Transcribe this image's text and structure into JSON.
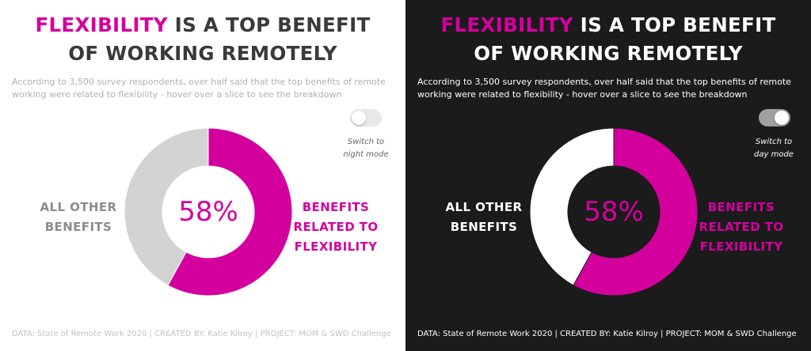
{
  "colors": {
    "accent": "#d4009e",
    "other_light": "#d3d3d3",
    "other_dark": "#ffffff",
    "dark_bg": "#1c1b1b"
  },
  "light": {
    "title_hl": "FLEXIBILITY",
    "title_rest": " IS A TOP BENEFIT",
    "title_line2": "OF WORKING REMOTELY",
    "subtitle": "According to 3,500 survey respondents, over half said that the top benefits of remote working were related to flexibility - hover over a slice to see the breakdown",
    "toggle_label": "Switch to night mode",
    "center_label": "58%",
    "left_label": "ALL OTHER BENEFITS",
    "right_label": "BENEFITS RELATED TO FLEXIBILITY",
    "footer": "DATA: State of Remote Work 2020 | CREATED BY: Katie Kilroy | PROJECT: MOM & SWD Challenge"
  },
  "dark": {
    "title_hl": "FLEXIBILITY",
    "title_rest": " IS A TOP BENEFIT",
    "title_line2": "OF WORKING REMOTELY",
    "subtitle": "According to 3,500 survey respondents, over half said that the top benefits of remote working were related to flexibility - hover over a slice to see the breakdown",
    "toggle_label": "Switch to day mode",
    "center_label": "58%",
    "left_label": "ALL OTHER BENEFITS",
    "right_label": "BENEFITS RELATED TO FLEXIBILITY",
    "footer": "DATA: State of Remote Work 2020 | CREATED BY: Katie Kilroy | PROJECT: MOM & SWD Challenge"
  },
  "chart_data": [
    {
      "type": "pie",
      "categories": [
        "BENEFITS RELATED TO FLEXIBILITY",
        "ALL OTHER BENEFITS"
      ],
      "values": [
        58,
        42
      ],
      "center_label": "58%",
      "colors": [
        "#d4009e",
        "#d3d3d3"
      ]
    },
    {
      "type": "pie",
      "categories": [
        "BENEFITS RELATED TO FLEXIBILITY",
        "ALL OTHER BENEFITS"
      ],
      "values": [
        58,
        42
      ],
      "center_label": "58%",
      "colors": [
        "#d4009e",
        "#ffffff"
      ]
    }
  ]
}
